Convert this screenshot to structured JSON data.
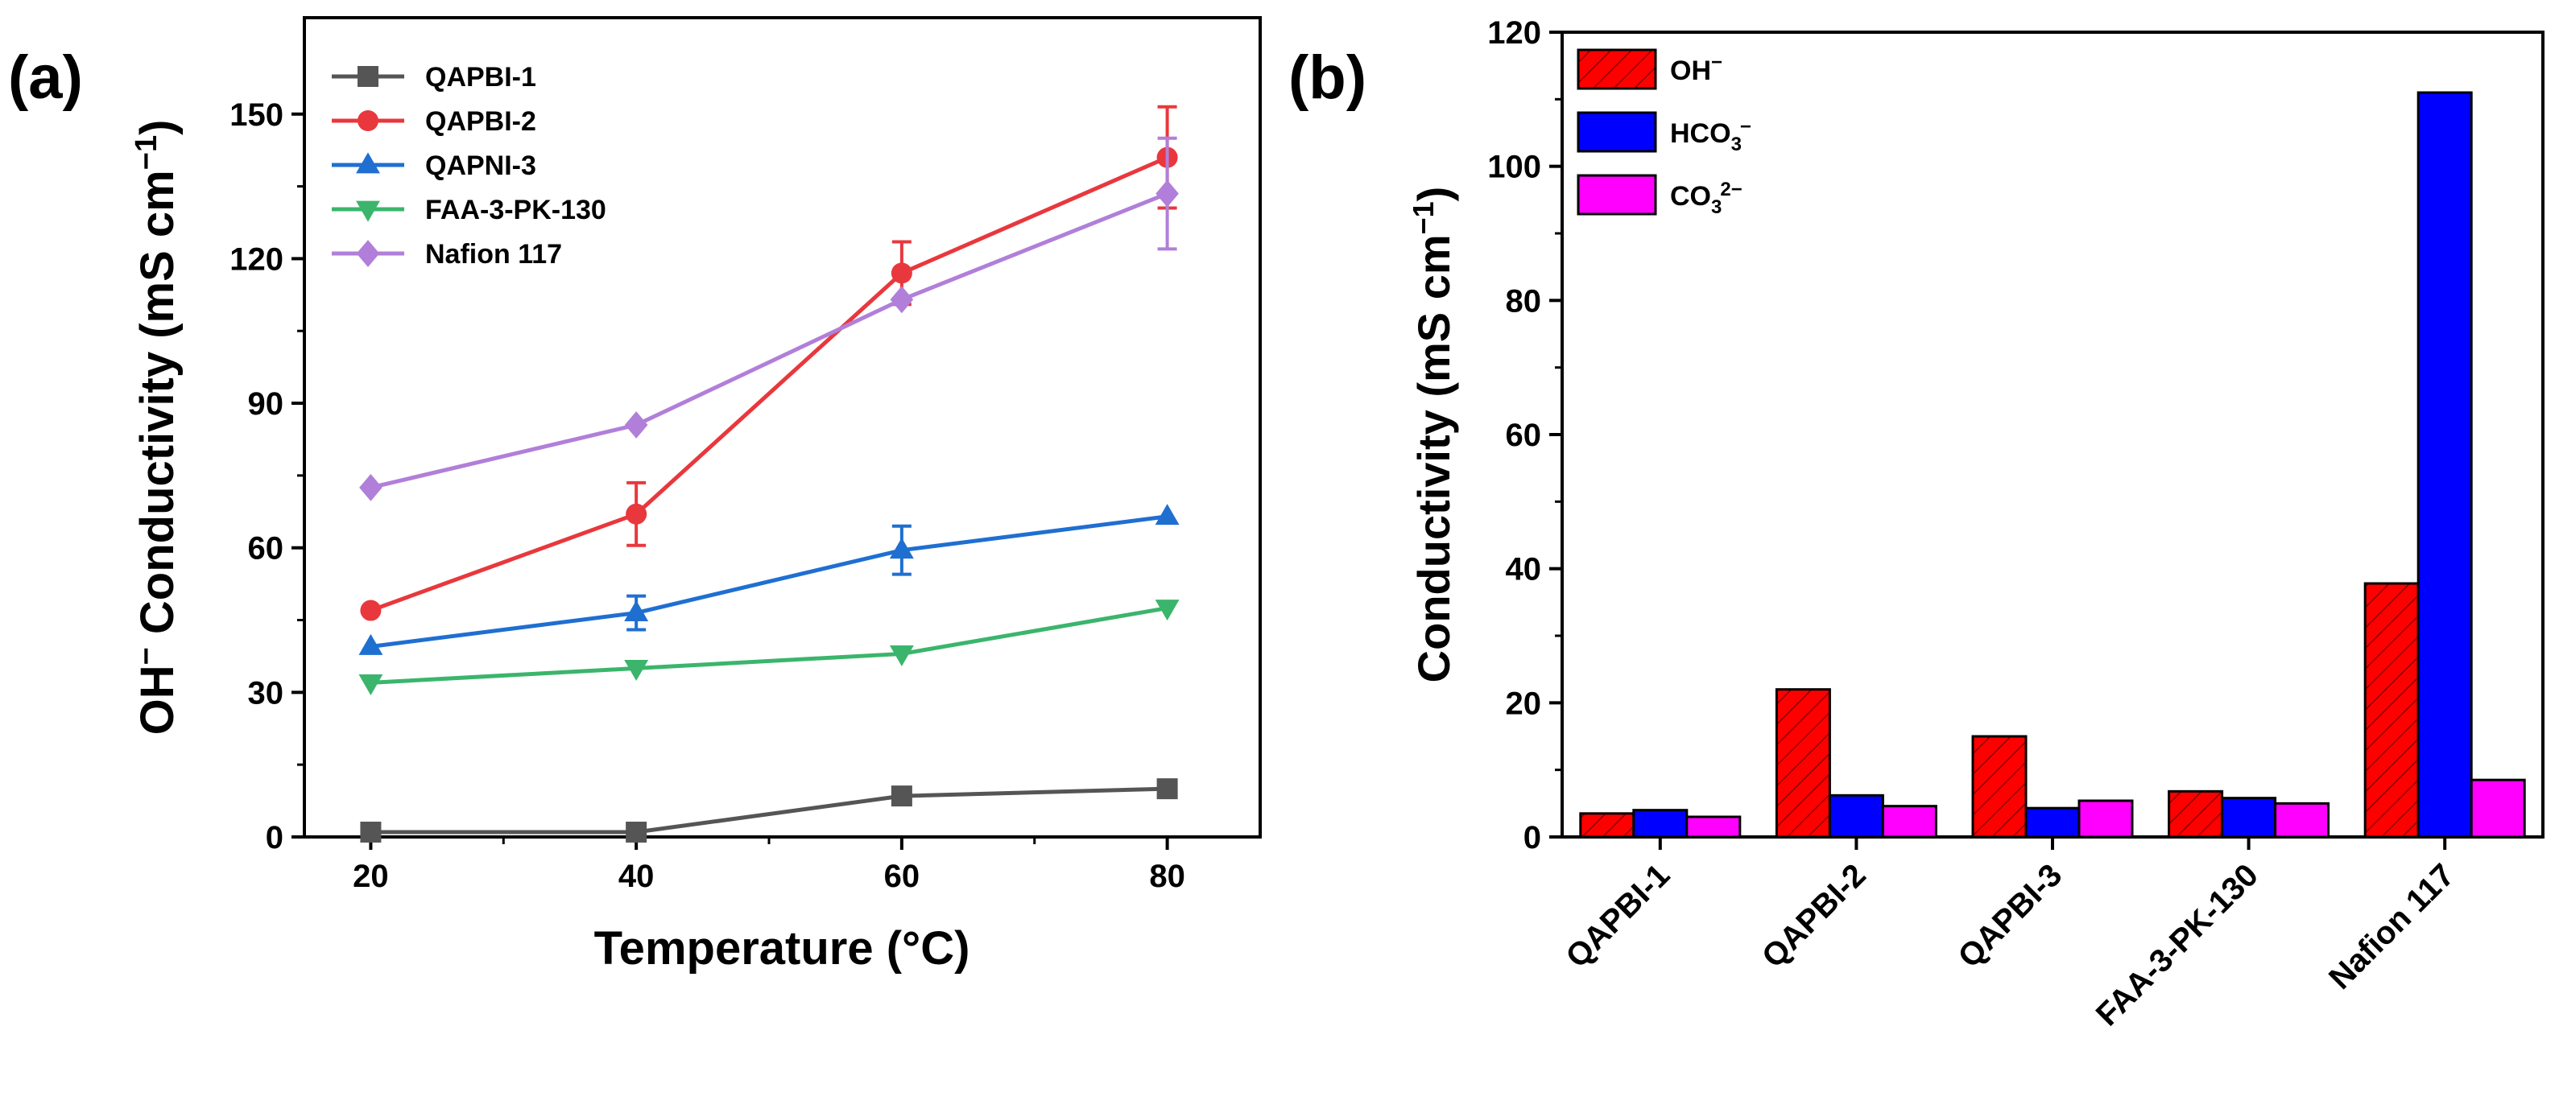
{
  "chart_data": [
    {
      "panel": "(a)",
      "type": "line",
      "xlabel": "Temperature (°C)",
      "ylabel_parts": [
        "OH",
        "−",
        " Conductivity (mS cm",
        "−1",
        ")"
      ],
      "x": [
        20,
        40,
        60,
        80
      ],
      "xticks": [
        "20",
        "40",
        "60",
        "80"
      ],
      "xlim": [
        15,
        87
      ],
      "ylim": [
        0,
        170
      ],
      "yticks": [
        "0",
        "30",
        "60",
        "90",
        "120",
        "150"
      ],
      "legend_position": "top-left",
      "series": [
        {
          "name": "QAPBI-1",
          "color": "#555555",
          "marker": "square",
          "values": [
            1,
            1,
            8.5,
            10
          ],
          "errors": [
            0,
            0,
            1,
            1
          ]
        },
        {
          "name": "QAPBI-2",
          "color": "#e8383d",
          "marker": "circle",
          "values": [
            47,
            67,
            117,
            141
          ],
          "errors": [
            0,
            6.5,
            6.5,
            10.5
          ]
        },
        {
          "name": "QAPNI-3",
          "color": "#1f6fd1",
          "marker": "triangle-up",
          "values": [
            39.5,
            46.5,
            59.5,
            66.5
          ],
          "errors": [
            0,
            3.5,
            5,
            0
          ]
        },
        {
          "name": "FAA-3-PK-130",
          "color": "#3bb56c",
          "marker": "triangle-down",
          "values": [
            32,
            35,
            38,
            47.5
          ],
          "errors": [
            0,
            0,
            0,
            0
          ]
        },
        {
          "name": "Nafion 117",
          "color": "#b17fd9",
          "marker": "diamond",
          "values": [
            72.5,
            85.5,
            111.5,
            133.5
          ],
          "errors": [
            0,
            0,
            0,
            11.5
          ]
        }
      ]
    },
    {
      "panel": "(b)",
      "type": "bar",
      "ylabel_parts": [
        "Conductivity (mS cm",
        "−1",
        ")"
      ],
      "categories": [
        "QAPBI-1",
        "QAPBI-2",
        "QAPBI-3",
        "FAA-3-PK-130",
        "Nafion 117"
      ],
      "ylim": [
        0,
        120
      ],
      "yticks": [
        "0",
        "20",
        "40",
        "60",
        "80",
        "100",
        "120"
      ],
      "legend_position": "top-left",
      "series": [
        {
          "name_parts": [
            "OH",
            "−"
          ],
          "color": "#ff0000",
          "hatch": true,
          "values": [
            3.5,
            22,
            15,
            6.8,
            37.8
          ]
        },
        {
          "name_parts": [
            "HCO",
            "3",
            "−"
          ],
          "color": "#0000ff",
          "hatch": false,
          "values": [
            4,
            6.2,
            4.3,
            5.8,
            111
          ]
        },
        {
          "name_parts": [
            "CO",
            "3",
            "2−"
          ],
          "color": "#ff00ff",
          "hatch": false,
          "values": [
            3,
            4.6,
            5.4,
            5,
            8.5
          ]
        }
      ]
    }
  ]
}
